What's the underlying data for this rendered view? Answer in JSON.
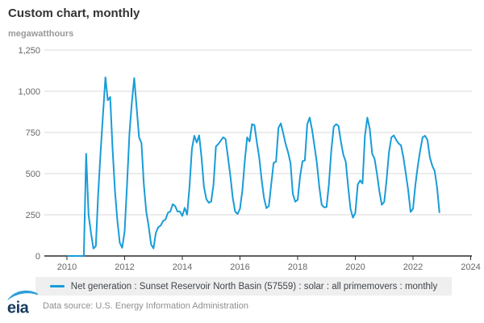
{
  "header": {
    "title": "Custom chart, monthly",
    "units": "megawatthours"
  },
  "chart_data": {
    "type": "line",
    "title": "Custom chart, monthly",
    "ylabel": "megawatthours",
    "xlabel": "",
    "grid": "horizontal",
    "legend_position": "bottom",
    "ylim": [
      0,
      1250
    ],
    "y_ticks": [
      0,
      250,
      500,
      750,
      1000,
      1250
    ],
    "y_tick_labels": [
      "0",
      "250",
      "500",
      "750",
      "1,000",
      "1,250"
    ],
    "x_ticks": [
      "2010",
      "2012",
      "2014",
      "2016",
      "2018",
      "2020",
      "2022",
      "2024"
    ],
    "series": [
      {
        "name": "Net generation : Sunset Reservoir North Basin (57559) : solar : all primemovers : monthly",
        "color": "#189cd8",
        "frequency": "monthly",
        "start": "2010-01",
        "end": "2022-12",
        "values": [
          0,
          0,
          0,
          0,
          0,
          0,
          0,
          0,
          620,
          250,
          140,
          45,
          60,
          375,
          630,
          860,
          1085,
          945,
          965,
          645,
          390,
          210,
          80,
          50,
          150,
          435,
          745,
          930,
          1080,
          900,
          720,
          685,
          435,
          270,
          180,
          70,
          46,
          140,
          175,
          185,
          213,
          220,
          262,
          270,
          314,
          303,
          270,
          270,
          243,
          292,
          251,
          420,
          650,
          730,
          688,
          732,
          600,
          420,
          345,
          323,
          330,
          435,
          665,
          680,
          700,
          720,
          710,
          600,
          485,
          350,
          270,
          255,
          287,
          400,
          580,
          720,
          695,
          800,
          795,
          690,
          600,
          465,
          352,
          290,
          303,
          435,
          565,
          573,
          778,
          805,
          745,
          680,
          630,
          565,
          377,
          330,
          340,
          483,
          575,
          580,
          800,
          840,
          765,
          665,
          565,
          420,
          311,
          295,
          297,
          435,
          640,
          785,
          800,
          790,
          695,
          614,
          573,
          420,
          287,
          233,
          262,
          434,
          459,
          440,
          730,
          840,
          770,
          620,
          590,
          500,
          393,
          311,
          328,
          460,
          630,
          720,
          732,
          705,
          683,
          672,
          598,
          500,
          400,
          267,
          287,
          434,
          549,
          640,
          720,
          730,
          705,
          598,
          549,
          516,
          418,
          262
        ]
      }
    ]
  },
  "legend": {
    "label": "Net generation : Sunset Reservoir North Basin (57559) : solar : all primemovers : monthly",
    "marker_color": "#189cd8"
  },
  "footer": {
    "logo_text": "eia",
    "source": "Data source: U.S. Energy Information Administration"
  },
  "colors": {
    "line": "#189cd8",
    "grid": "#d9d9d9",
    "axis": "#2b2b2b",
    "tick_label": "#666666",
    "title": "#333333",
    "units": "#999999",
    "legend_bg": "#efefef",
    "legend_text": "#40454c",
    "footer_text": "#8e8e8e",
    "logo_navy": "#173a5e",
    "logo_swoosh": "#2e9fd8"
  }
}
